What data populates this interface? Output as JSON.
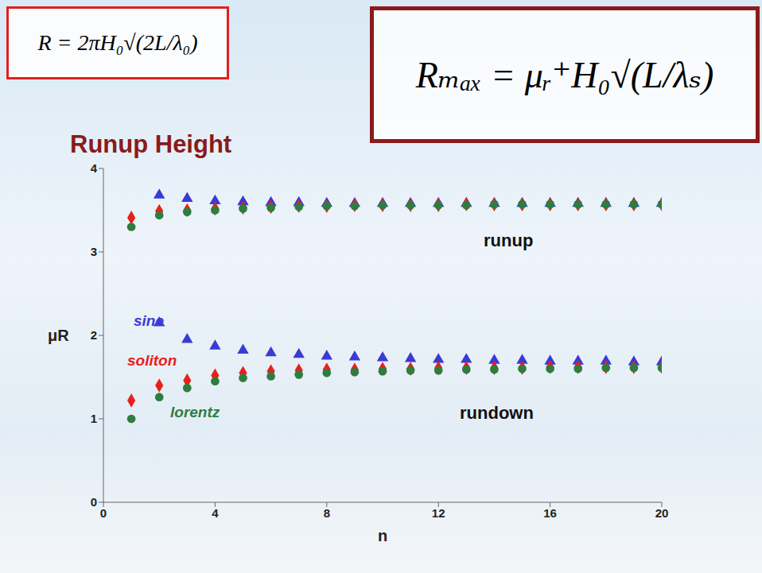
{
  "chart_data": {
    "type": "scatter",
    "title": "Runup Height",
    "formulas": [
      "R = 2πH₀√(2L/λ₀)",
      "Rₘₐₓ = μᵣ⁺H₀√(L/λₛ)"
    ],
    "x_label": "n",
    "y_label": "μR",
    "x": [
      1,
      2,
      3,
      4,
      5,
      6,
      7,
      8,
      9,
      10,
      11,
      12,
      13,
      14,
      15,
      16,
      17,
      18,
      19,
      20
    ],
    "xlim": [
      0,
      20
    ],
    "xticks": [
      0,
      4,
      8,
      12,
      16,
      20
    ],
    "ylim": [
      0,
      4
    ],
    "yticks": [
      0,
      1,
      2,
      3,
      4
    ],
    "grid": false,
    "groups": [
      {
        "label": "runup",
        "series": [
          {
            "name": "sine",
            "color": "#3a3ad6",
            "marker": "triangle",
            "values": [
              null,
              3.68,
              3.64,
              3.61,
              3.6,
              3.59,
              3.59,
              3.58,
              3.58,
              3.58,
              3.58,
              3.58,
              3.58,
              3.58,
              3.58,
              3.58,
              3.58,
              3.58,
              3.58,
              3.58
            ]
          },
          {
            "name": "soliton",
            "color": "#e8201c",
            "marker": "diamond",
            "values": [
              3.41,
              3.49,
              3.5,
              3.52,
              3.53,
              3.54,
              3.55,
              3.55,
              3.56,
              3.56,
              3.56,
              3.56,
              3.57,
              3.57,
              3.57,
              3.57,
              3.57,
              3.57,
              3.57,
              3.57
            ]
          },
          {
            "name": "lorentz",
            "color": "#2e7d3e",
            "marker": "circle",
            "values": [
              3.3,
              3.44,
              3.48,
              3.5,
              3.52,
              3.53,
              3.54,
              3.55,
              3.55,
              3.56,
              3.56,
              3.56,
              3.56,
              3.57,
              3.57,
              3.57,
              3.57,
              3.57,
              3.57,
              3.57
            ]
          }
        ]
      },
      {
        "label": "rundown",
        "series": [
          {
            "name": "sine",
            "color": "#3a3ad6",
            "marker": "triangle",
            "values": [
              null,
              2.15,
              1.95,
              1.87,
              1.82,
              1.79,
              1.77,
              1.75,
              1.74,
              1.73,
              1.72,
              1.71,
              1.71,
              1.7,
              1.7,
              1.69,
              1.69,
              1.69,
              1.68,
              1.68
            ]
          },
          {
            "name": "soliton",
            "color": "#e8201c",
            "marker": "diamond",
            "values": [
              1.22,
              1.4,
              1.46,
              1.52,
              1.55,
              1.57,
              1.58,
              1.59,
              1.59,
              1.6,
              1.6,
              1.61,
              1.61,
              1.61,
              1.61,
              1.62,
              1.62,
              1.62,
              1.62,
              1.62
            ]
          },
          {
            "name": "lorentz",
            "color": "#2e7d3e",
            "marker": "circle",
            "values": [
              1.0,
              1.26,
              1.37,
              1.45,
              1.49,
              1.51,
              1.53,
              1.55,
              1.56,
              1.57,
              1.58,
              1.58,
              1.59,
              1.59,
              1.6,
              1.6,
              1.6,
              1.61,
              1.61,
              1.61
            ]
          }
        ]
      }
    ]
  }
}
